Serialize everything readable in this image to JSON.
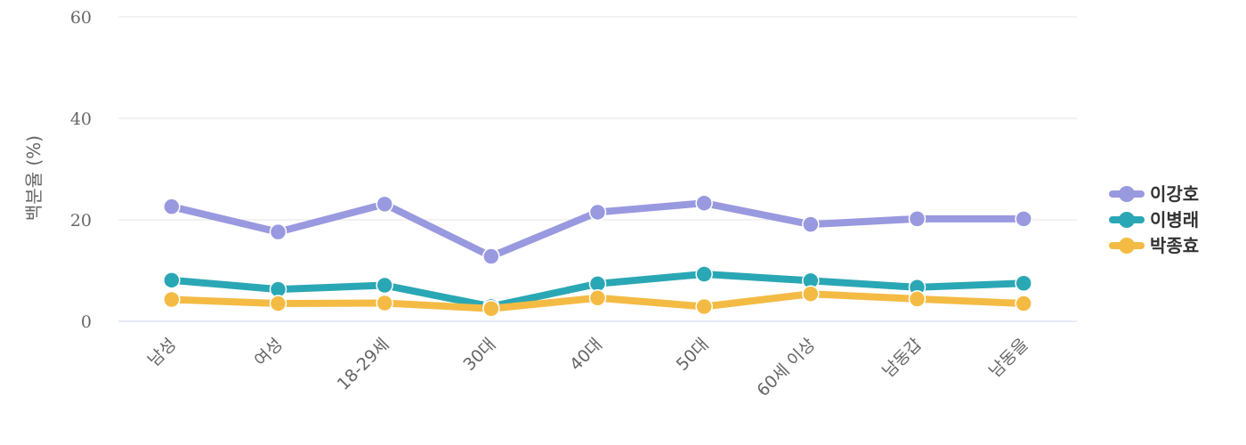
{
  "chart_data": {
    "type": "line",
    "title": "",
    "xlabel": "",
    "ylabel": "백분율 (%)",
    "ylim": [
      0,
      60
    ],
    "yticks": [
      0,
      20,
      40,
      60
    ],
    "grid": true,
    "legend_position": "right",
    "categories": [
      "남성",
      "여성",
      "18-29세",
      "30대",
      "40대",
      "50대",
      "60세 이상",
      "남동갑",
      "남동을"
    ],
    "series": [
      {
        "name": "이강호",
        "color": "#9999e0",
        "values": [
          22.6,
          17.6,
          23.1,
          12.8,
          21.5,
          23.3,
          19.1,
          20.2,
          20.2
        ]
      },
      {
        "name": "이병래",
        "color": "#2aa7b5",
        "values": [
          8.1,
          6.3,
          7.1,
          2.9,
          7.4,
          9.3,
          8.0,
          6.7,
          7.5
        ]
      },
      {
        "name": "박종효",
        "color": "#f4bb44",
        "values": [
          4.3,
          3.5,
          3.6,
          2.5,
          4.6,
          2.9,
          5.4,
          4.4,
          3.5
        ]
      }
    ]
  }
}
